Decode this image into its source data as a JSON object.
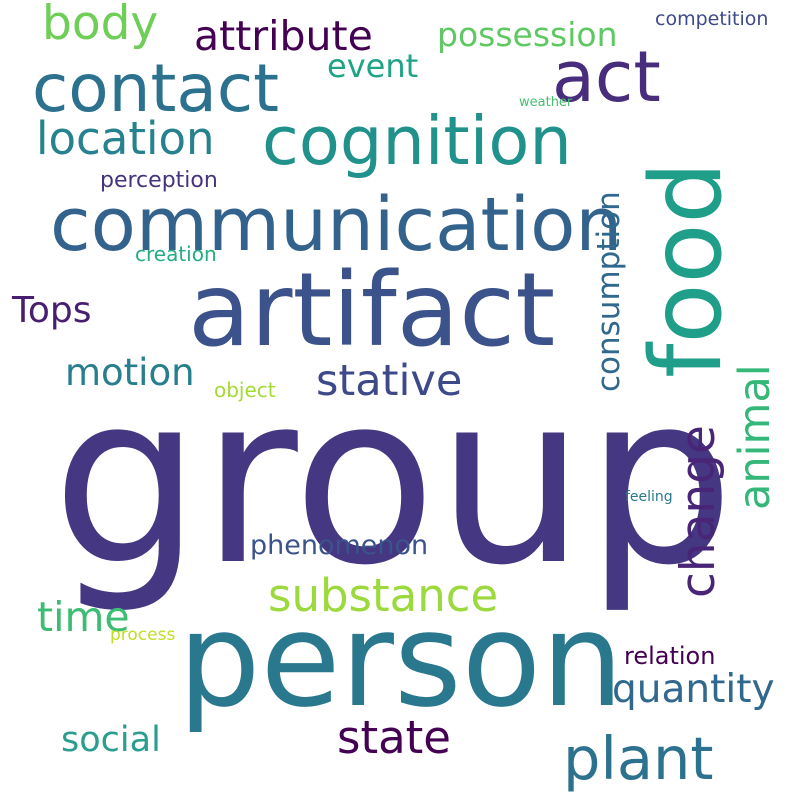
{
  "cloud": {
    "background": "#ffffff",
    "words": [
      {
        "key": "group",
        "text": "group",
        "color": "#453781"
      },
      {
        "key": "person",
        "text": "person",
        "color": "#2a788e"
      },
      {
        "key": "artifact",
        "text": "artifact",
        "color": "#3b528b"
      },
      {
        "key": "communication",
        "text": "communication",
        "color": "#33638d"
      },
      {
        "key": "cognition",
        "text": "cognition",
        "color": "#21918c"
      },
      {
        "key": "food",
        "text": "food",
        "color": "#1f9e89"
      },
      {
        "key": "act",
        "text": "act",
        "color": "#472d7b"
      },
      {
        "key": "contact",
        "text": "contact",
        "color": "#2c728e"
      },
      {
        "key": "location",
        "text": "location",
        "color": "#26828e"
      },
      {
        "key": "body",
        "text": "body",
        "color": "#6ece58"
      },
      {
        "key": "attribute",
        "text": "attribute",
        "color": "#440154"
      },
      {
        "key": "possession",
        "text": "possession",
        "color": "#5ec962"
      },
      {
        "key": "event",
        "text": "event",
        "color": "#20a486"
      },
      {
        "key": "competition",
        "text": "competition",
        "color": "#3e4a89"
      },
      {
        "key": "weather",
        "text": "weather",
        "color": "#44bf70"
      },
      {
        "key": "perception",
        "text": "perception",
        "color": "#46337e"
      },
      {
        "key": "creation",
        "text": "creation",
        "color": "#25ac82"
      },
      {
        "key": "consumption",
        "text": "consumption",
        "color": "#31688e"
      },
      {
        "key": "Tops",
        "text": "Tops",
        "color": "#481f70"
      },
      {
        "key": "animal",
        "text": "animal",
        "color": "#35b779"
      },
      {
        "key": "motion",
        "text": "motion",
        "color": "#277f8e"
      },
      {
        "key": "stative",
        "text": "stative",
        "color": "#3e4989"
      },
      {
        "key": "object",
        "text": "object",
        "color": "#a5db36"
      },
      {
        "key": "change",
        "text": "change",
        "color": "#482576"
      },
      {
        "key": "feeling",
        "text": "feeling",
        "color": "#2a788e"
      },
      {
        "key": "phenomenon",
        "text": "phenomenon",
        "color": "#3b528b"
      },
      {
        "key": "substance",
        "text": "substance",
        "color": "#9bd93c"
      },
      {
        "key": "time",
        "text": "time",
        "color": "#3dbc74"
      },
      {
        "key": "process",
        "text": "process",
        "color": "#c2df23"
      },
      {
        "key": "relation",
        "text": "relation",
        "color": "#440154"
      },
      {
        "key": "quantity",
        "text": "quantity",
        "color": "#31688e"
      },
      {
        "key": "social",
        "text": "social",
        "color": "#2a9d8f"
      },
      {
        "key": "state",
        "text": "state",
        "color": "#440154"
      },
      {
        "key": "plant",
        "text": "plant",
        "color": "#2c728e"
      }
    ]
  }
}
